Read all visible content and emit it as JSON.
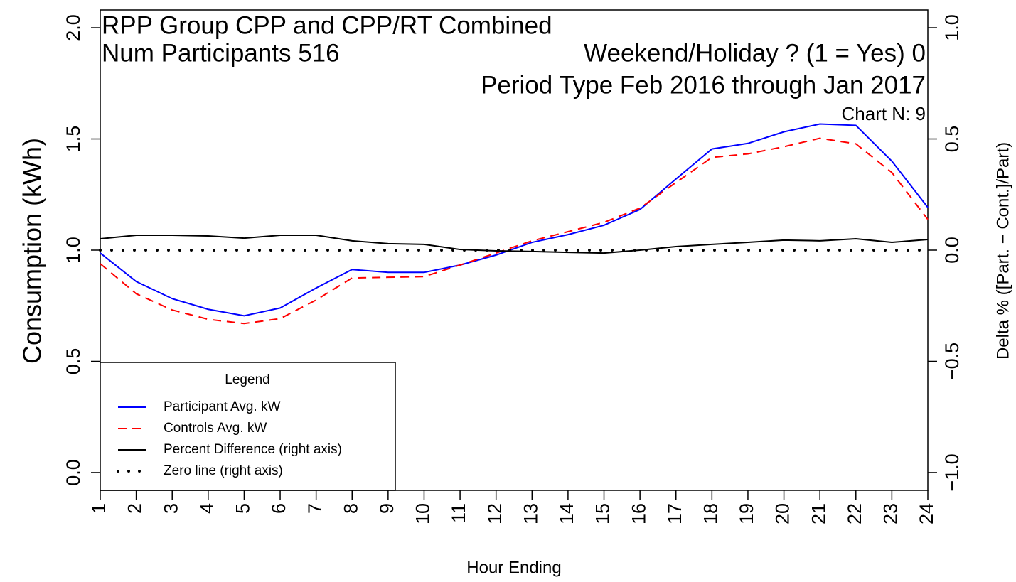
{
  "chart_data": {
    "type": "line",
    "title": "RPP Group CPP and CPP/RT Combined",
    "participants_label": "Num Participants 516",
    "weekend_label": "Weekend/Holiday ? (1 = Yes) 0",
    "period_label": "Period Type Feb 2016 through Jan 2017",
    "chart_n_label": "Chart N: 9",
    "x_label": "Hour Ending",
    "y_label": "Consumption (kWh)",
    "y2_label": "Delta % ([Part. − Cont.]/Part)",
    "legend_title": "Legend",
    "legend_position": "lower left",
    "x": [
      1,
      2,
      3,
      4,
      5,
      6,
      7,
      8,
      9,
      10,
      11,
      12,
      13,
      14,
      15,
      16,
      17,
      18,
      19,
      20,
      21,
      22,
      23,
      24
    ],
    "xlim": [
      1,
      24
    ],
    "xticks": [
      1,
      2,
      3,
      4,
      5,
      6,
      7,
      8,
      9,
      10,
      11,
      12,
      13,
      14,
      15,
      16,
      17,
      18,
      19,
      20,
      21,
      22,
      23,
      24
    ],
    "ylim": [
      -0.08,
      2.08
    ],
    "yticks": [
      {
        "value": 0,
        "label": "0.0"
      },
      0.5,
      {
        "value": 1,
        "label": "1.0"
      },
      1.5,
      {
        "value": 2,
        "label": "2.0"
      }
    ],
    "y2lim": [
      -1.08,
      1.08
    ],
    "y2ticks": [
      {
        "value": -1,
        "label": "−1.0"
      },
      {
        "value": -0.5,
        "label": "−0.5"
      },
      {
        "value": 0,
        "label": "0.0"
      },
      0.5,
      {
        "value": 1,
        "label": "1.0"
      }
    ],
    "series": [
      {
        "name": "Participant Avg. kW",
        "color": "#0000ff",
        "dash": "solid",
        "values": [
          0.987,
          0.859,
          0.782,
          0.734,
          0.705,
          0.74,
          0.83,
          0.913,
          0.9,
          0.9,
          0.933,
          0.978,
          1.035,
          1.07,
          1.112,
          1.183,
          1.32,
          1.455,
          1.48,
          1.532,
          1.567,
          1.561,
          1.4,
          1.192
        ]
      },
      {
        "name": "Controls Avg. kW",
        "color": "#ff0000",
        "dash": "dashed",
        "values": [
          0.939,
          0.804,
          0.731,
          0.689,
          0.67,
          0.692,
          0.776,
          0.875,
          0.878,
          0.881,
          0.933,
          0.987,
          1.042,
          1.083,
          1.125,
          1.189,
          1.304,
          1.417,
          1.433,
          1.465,
          1.503,
          1.478,
          1.349,
          1.138
        ]
      },
      {
        "name": "Percent Difference (right axis)",
        "color": "#000000",
        "dash": "solid",
        "axis": "y2",
        "values": [
          0.051,
          0.067,
          0.067,
          0.064,
          0.054,
          0.067,
          0.067,
          0.042,
          0.029,
          0.026,
          0.003,
          -0.003,
          -0.006,
          -0.01,
          -0.013,
          0,
          0.016,
          0.026,
          0.035,
          0.045,
          0.042,
          0.051,
          0.035,
          0.048
        ]
      },
      {
        "name": "Zero line (right axis)",
        "color": "#000000",
        "dash": "dotted",
        "axis": "y2",
        "values": [
          0,
          0,
          0,
          0,
          0,
          0,
          0,
          0,
          0,
          0,
          0,
          0,
          0,
          0,
          0,
          0,
          0,
          0,
          0,
          0,
          0,
          0,
          0,
          0
        ]
      }
    ]
  }
}
